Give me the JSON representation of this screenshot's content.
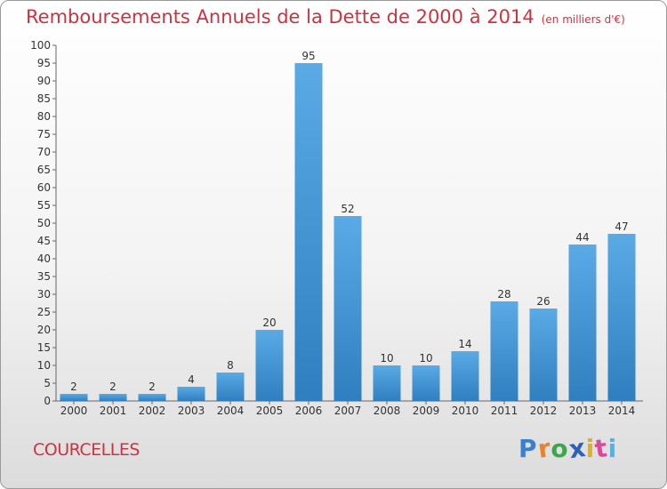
{
  "chart_data": {
    "type": "bar",
    "title": "Remboursements Annuels de la Dette de 2000 à 2014",
    "subtitle": "(en milliers d'€)",
    "categories": [
      "2000",
      "2001",
      "2002",
      "2003",
      "2004",
      "2005",
      "2006",
      "2007",
      "2008",
      "2009",
      "2010",
      "2011",
      "2012",
      "2013",
      "2014"
    ],
    "values": [
      2,
      2,
      2,
      4,
      8,
      20,
      95,
      52,
      10,
      10,
      14,
      28,
      26,
      44,
      47
    ],
    "ylim": [
      0,
      100
    ],
    "ytick_step": 5,
    "grid": false,
    "legend": "none",
    "data_labels": true,
    "colors": {
      "bar_top": "#5aaae6",
      "bar_bottom": "#2f7fc0",
      "title": "#cc3340"
    }
  },
  "footer": {
    "commune": "COURCELLES",
    "brand": [
      "P",
      "r",
      "o",
      "x",
      "i",
      "t",
      "i"
    ],
    "brand_colors": [
      "#3a7fd0",
      "#e8832a",
      "#3aa84a",
      "#2f5fb8",
      "#e0b020",
      "#d84a9a",
      "#5ab0e0"
    ]
  }
}
